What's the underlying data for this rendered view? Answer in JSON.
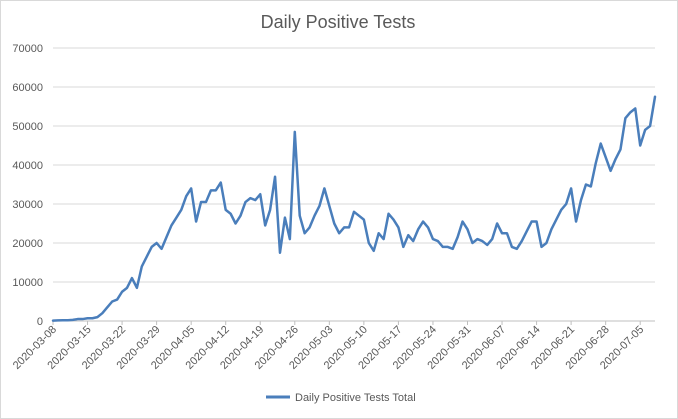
{
  "chart_data": {
    "type": "line",
    "title": "Daily Positive Tests",
    "xlabel": "",
    "ylabel": "",
    "ylim": [
      0,
      70000
    ],
    "yticks": [
      0,
      10000,
      20000,
      30000,
      40000,
      50000,
      60000,
      70000
    ],
    "ytick_labels": [
      "0",
      "10000",
      "20000",
      "30000",
      "40000",
      "50000",
      "60000",
      "70000"
    ],
    "xtick_labels": [
      "2020-03-08",
      "2020-03-15",
      "2020-03-22",
      "2020-03-29",
      "2020-04-05",
      "2020-04-12",
      "2020-04-19",
      "2020-04-26",
      "2020-05-03",
      "2020-05-10",
      "2020-05-17",
      "2020-05-24",
      "2020-05-31",
      "2020-06-07",
      "2020-06-14",
      "2020-06-21",
      "2020-06-28",
      "2020-07-05"
    ],
    "grid": true,
    "legend": "bottom",
    "color": "#4a7ebb",
    "series": [
      {
        "name": "Daily Positive Tests Total",
        "x_start": "2020-03-08",
        "x_step_days": 1,
        "values": [
          100,
          150,
          200,
          200,
          300,
          500,
          500,
          700,
          700,
          1000,
          2000,
          3500,
          5000,
          5500,
          7500,
          8500,
          11000,
          8500,
          14000,
          16500,
          19000,
          20000,
          18500,
          21500,
          24500,
          26500,
          28500,
          32000,
          34000,
          25500,
          30500,
          30500,
          33500,
          33500,
          35500,
          28500,
          27500,
          25000,
          27000,
          30500,
          31500,
          31000,
          32500,
          24500,
          28500,
          37000,
          17500,
          26500,
          21000,
          48500,
          27000,
          22500,
          24000,
          27000,
          29500,
          34000,
          29500,
          25000,
          22500,
          24000,
          24000,
          28000,
          27000,
          26000,
          20000,
          18000,
          22500,
          21000,
          27500,
          26000,
          24000,
          19000,
          22000,
          20500,
          23500,
          25500,
          24000,
          21000,
          20500,
          19000,
          19000,
          18500,
          21500,
          25500,
          23500,
          20000,
          21000,
          20500,
          19500,
          21000,
          25000,
          22500,
          22500,
          19000,
          18500,
          20500,
          23000,
          25500,
          25500,
          19000,
          20000,
          23500,
          26000,
          28500,
          30000,
          34000,
          25500,
          31000,
          35000,
          34500,
          40500,
          45500,
          42000,
          38500,
          41500,
          44000,
          52000,
          53500,
          54500,
          45000,
          49000,
          50000,
          57500
        ]
      }
    ]
  }
}
